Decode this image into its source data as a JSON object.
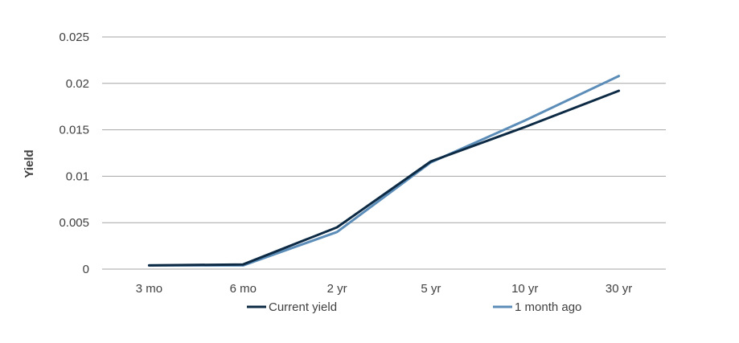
{
  "chart_data": {
    "type": "line",
    "title": "",
    "xlabel": "",
    "ylabel": "Yield",
    "categories": [
      "3 mo",
      "6 mo",
      "2 yr",
      "5 yr",
      "10 yr",
      "30 yr"
    ],
    "ylim": [
      0,
      0.025
    ],
    "yticks": [
      "0",
      "0.005",
      "0.01",
      "0.015",
      "0.02",
      "0.025"
    ],
    "grid": true,
    "legend_position": "bottom",
    "series": [
      {
        "name": "Current yield",
        "color": "#0d2a45",
        "values": [
          0.0004,
          0.0005,
          0.0045,
          0.0116,
          0.0153,
          0.0192
        ]
      },
      {
        "name": "1 month ago",
        "color": "#5b8db8",
        "values": [
          0.0004,
          0.0004,
          0.004,
          0.0115,
          0.016,
          0.0208
        ]
      }
    ]
  }
}
